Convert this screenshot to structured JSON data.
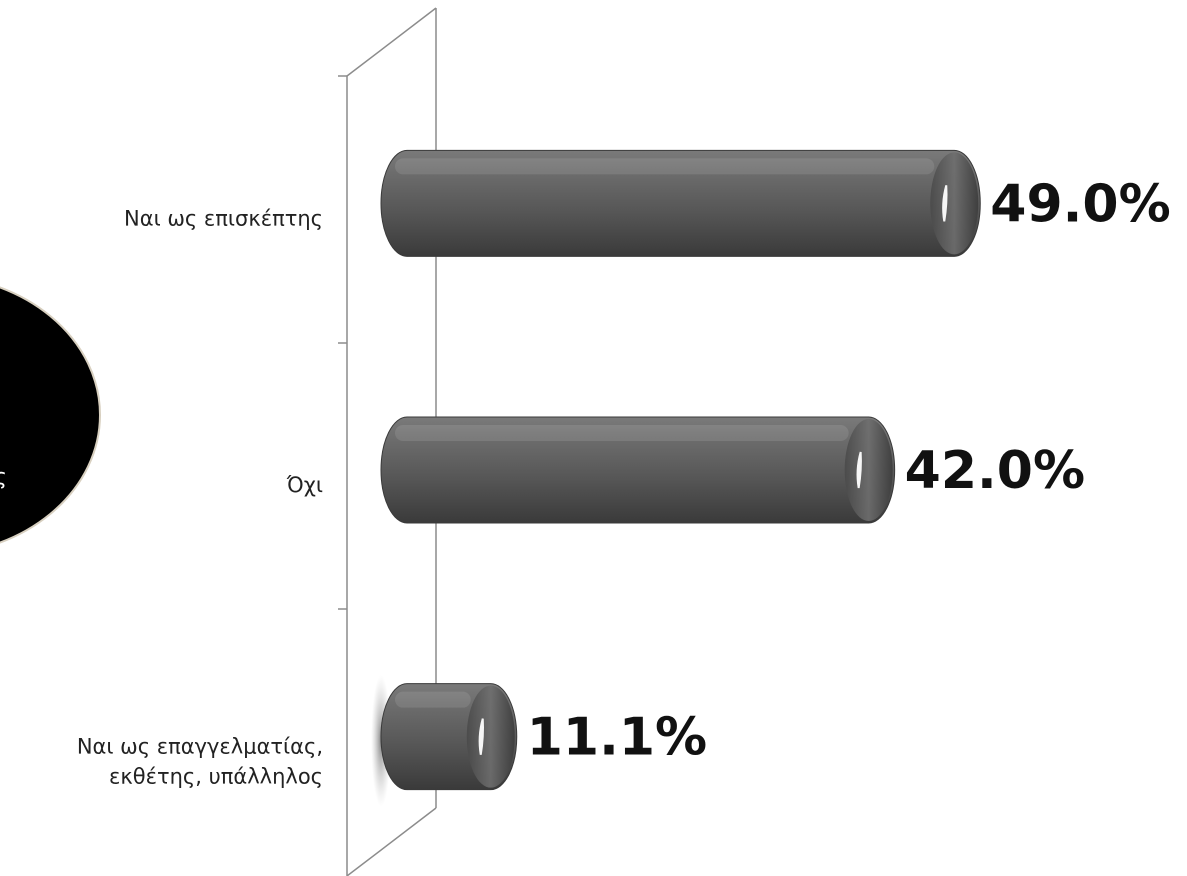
{
  "side_panel": {
    "text": "ς"
  },
  "chart_data": {
    "type": "bar",
    "orientation": "horizontal",
    "categories": [
      "Ναι ως επισκέπτης",
      "Όχι",
      "Ναι ως επαγγελματίας, εκθέτης, υπάλληλος"
    ],
    "category_lines": [
      [
        "Ναι ως επισκέπτης"
      ],
      [
        "Όχι"
      ],
      [
        "Ναι ως επαγγελματίας,",
        "εκθέτης, υπάλληλος"
      ]
    ],
    "values": [
      49.0,
      42.0,
      11.1
    ],
    "value_labels": [
      "49.0%",
      "42.0%",
      "11.1%"
    ],
    "title": "",
    "xlabel": "",
    "ylabel": "",
    "xlim": [
      0,
      55
    ],
    "grid": false,
    "legend": "none",
    "colors": {
      "bar": "#5a5a5a",
      "bar_dark": "#333333",
      "bar_light": "#8a8a8a",
      "axis": "#8c8c8c",
      "side_panel": "#000000"
    }
  }
}
